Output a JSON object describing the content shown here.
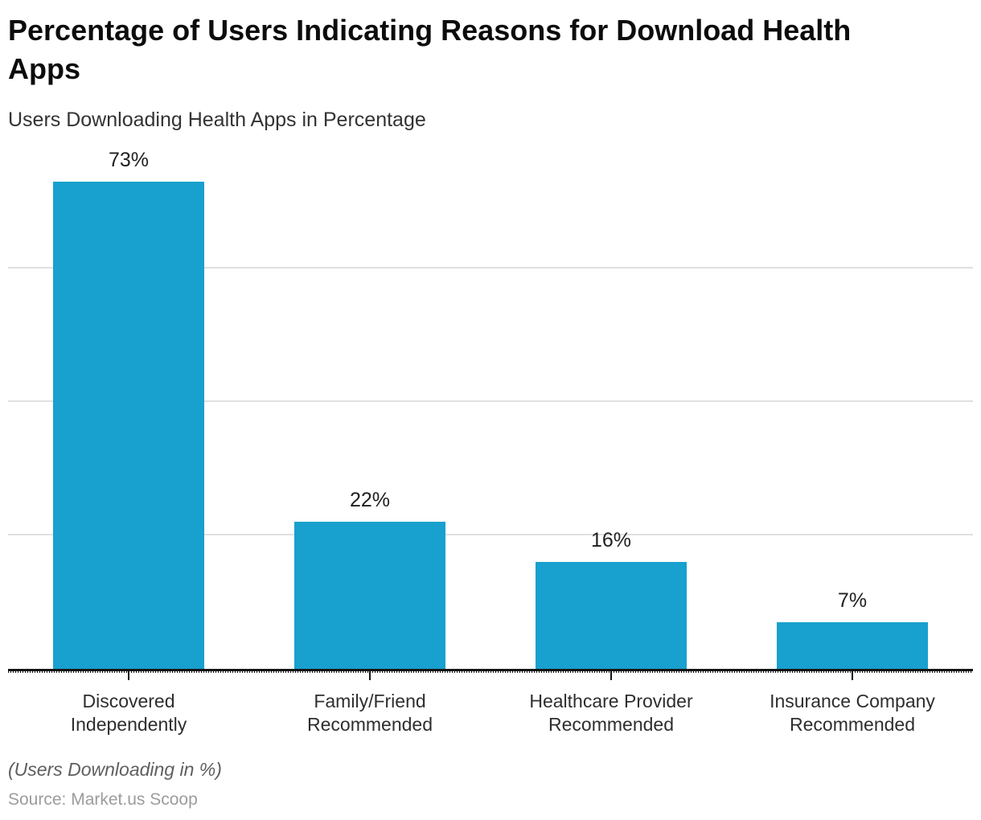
{
  "chart_data": {
    "type": "bar",
    "title": "Percentage of Users Indicating Reasons for Download Health Apps",
    "subtitle": "Users Downloading Health Apps in Percentage",
    "categories": [
      "Discovered\nIndependently",
      "Family/Friend\nRecommended",
      "Healthcare Provider\nRecommended",
      "Insurance Company\nRecommended"
    ],
    "values": [
      73,
      22,
      16,
      7
    ],
    "value_labels": [
      "73%",
      "22%",
      "16%",
      "7%"
    ],
    "xlabel": "",
    "ylabel": "",
    "ylim": [
      0,
      79.5
    ],
    "gridlines": [
      20,
      40,
      60
    ],
    "grid_on": true,
    "legend": "none",
    "bar_color": "#18A0CE",
    "gridline_color": "#e0e0e0",
    "axis_color": "#141414",
    "footnote": "(Users Downloading in %)",
    "source": "Source: Market.us Scoop"
  }
}
